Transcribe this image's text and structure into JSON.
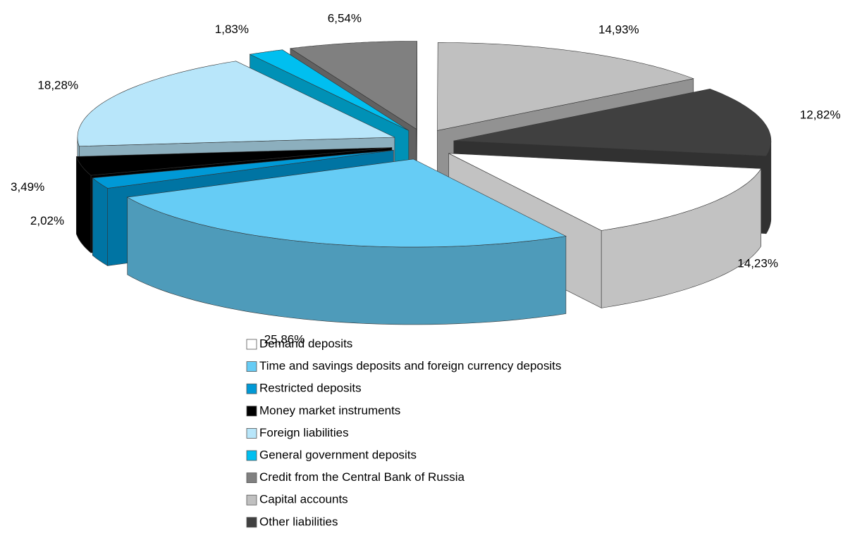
{
  "chart_data": {
    "type": "pie",
    "categories": [
      "Demand deposits",
      "Time and savings deposits and foreign currency deposits",
      "Restricted deposits",
      "Money market instruments",
      "Foreign liabilities",
      "General government deposits",
      "Credit from the Central Bank of Russia",
      "Capital accounts",
      "Other liabilities"
    ],
    "values": [
      14.23,
      25.86,
      2.02,
      3.49,
      18.28,
      1.83,
      6.54,
      14.93,
      12.82
    ],
    "value_labels": [
      "14,23%",
      "25,86%",
      "2,02%",
      "3,49%",
      "18,28%",
      "1,83%",
      "6,54%",
      "14,93%",
      "12,82%"
    ],
    "colors": [
      "#ffffff",
      "#66ccf5",
      "#0099d6",
      "#000000",
      "#b8e6fa",
      "#00bff0",
      "#808080",
      "#c0c0c0",
      "#404040"
    ],
    "legend": "bottom"
  }
}
